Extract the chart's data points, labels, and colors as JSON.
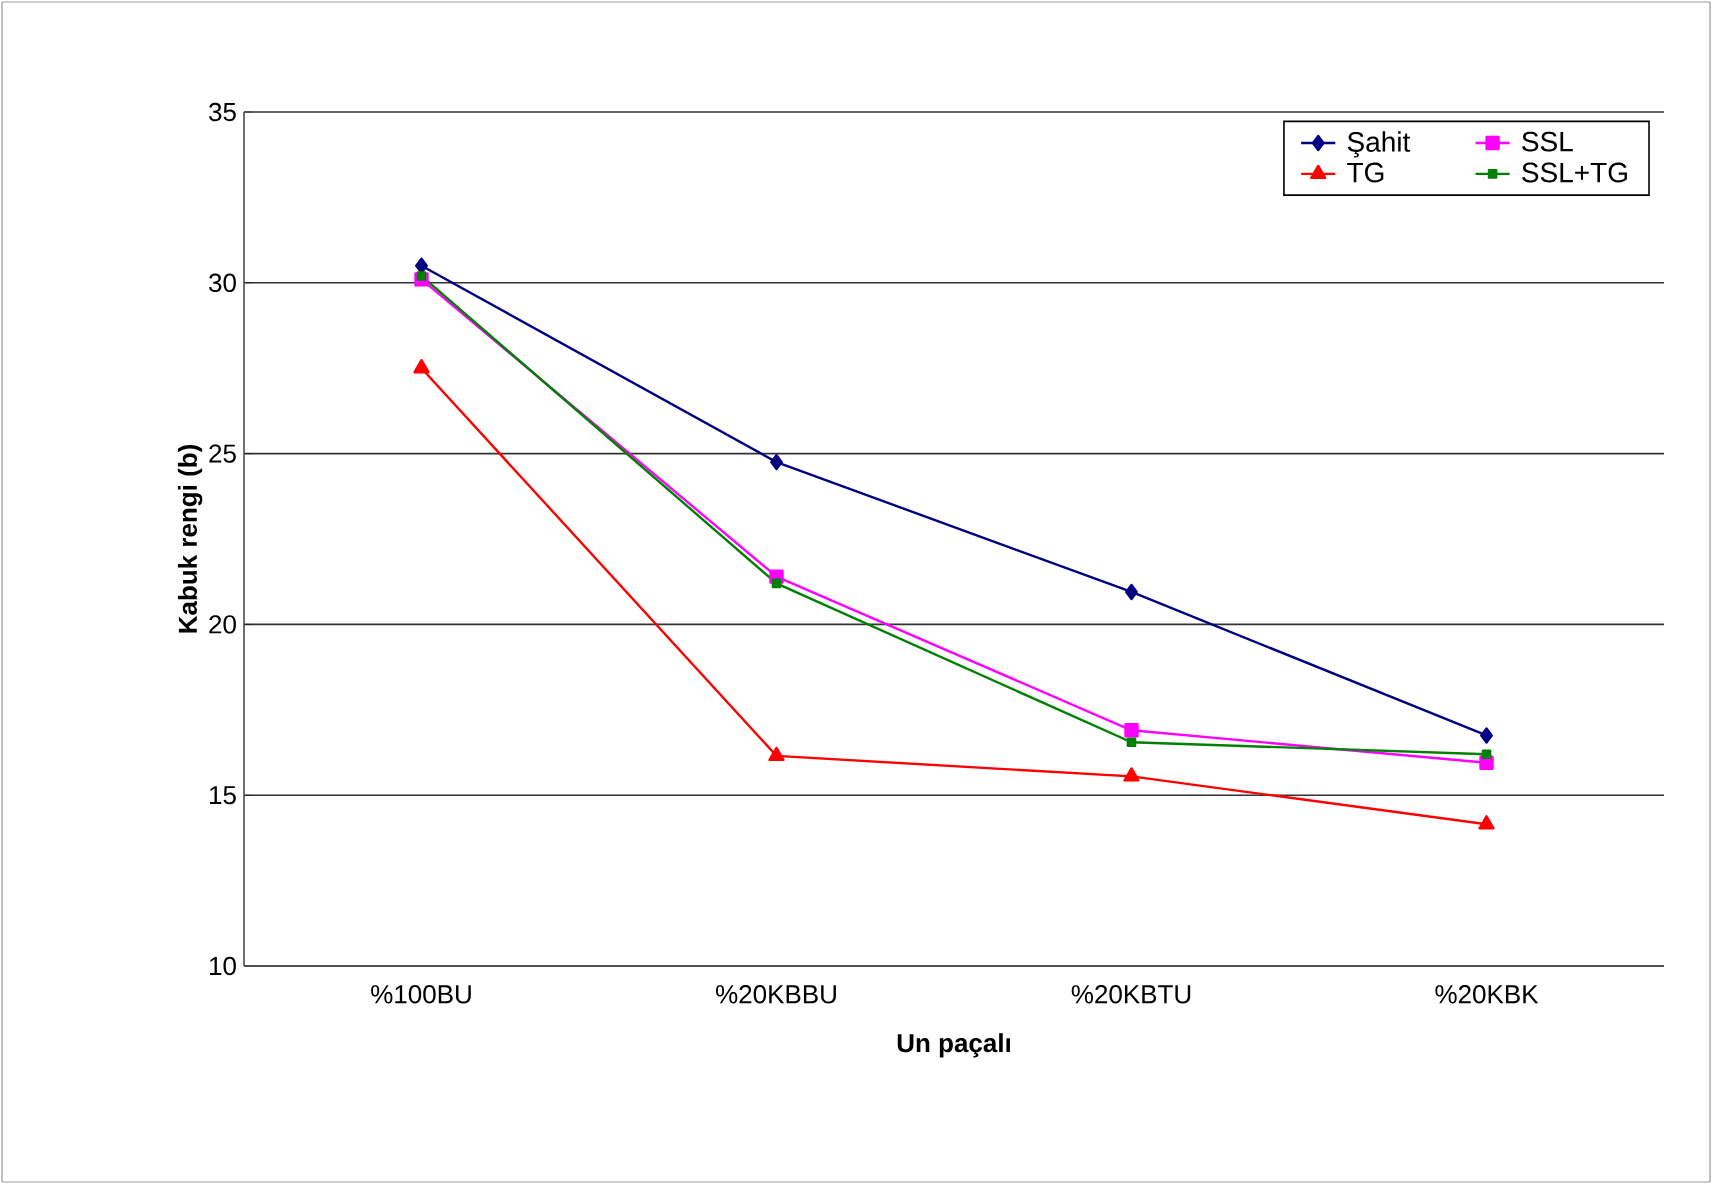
{
  "chart_data": {
    "type": "line",
    "xlabel": "Un paçalı",
    "ylabel": "Kabuk rengi (b)",
    "categories": [
      "%100BU",
      "%20KBBU",
      "%20KBTU",
      "%20KBK"
    ],
    "series": [
      {
        "name": "Şahit",
        "color": "#000080",
        "marker": "diamond",
        "values": [
          30.5,
          24.75,
          20.95,
          16.75
        ]
      },
      {
        "name": "SSL",
        "color": "#ff00ff",
        "marker": "square",
        "values": [
          30.1,
          21.4,
          16.9,
          15.95
        ]
      },
      {
        "name": "TG",
        "color": "#ff0000",
        "marker": "triangle",
        "values": [
          27.5,
          16.15,
          15.55,
          14.15
        ]
      },
      {
        "name": "SSL+TG",
        "color": "#008000",
        "marker": "square",
        "values": [
          30.2,
          21.2,
          16.55,
          16.2
        ]
      }
    ],
    "ylim": [
      10,
      35
    ],
    "yticks": [
      10,
      15,
      20,
      25,
      30,
      35
    ],
    "grid": "y",
    "legend": "top right",
    "line_style": "solid"
  }
}
